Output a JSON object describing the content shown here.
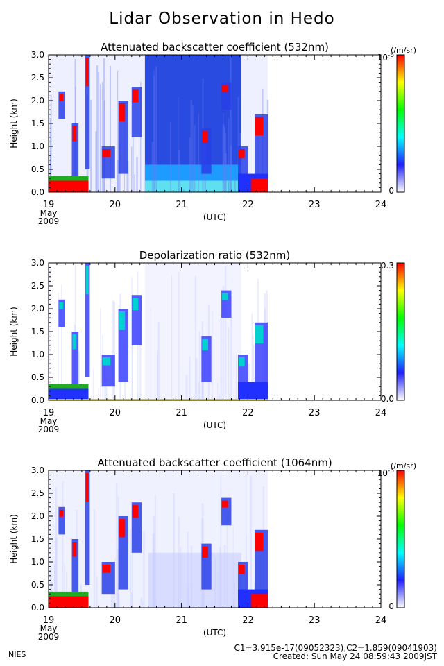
{
  "title": "Lidar Observation in Hedo",
  "organization": "NIES",
  "calibration_line": "C1=3.915e-17(09052323),C2=1.859(09041903)",
  "created_line": "Created: Sun May 24 08:59:43 2009JST",
  "chart_data": [
    {
      "type": "heatmap",
      "title": "Attenuated backscatter coefficient (532nm)",
      "ylabel": "Height (km)",
      "xlabel": "(UTC)",
      "x_ticks": [
        "19",
        "20",
        "21",
        "22",
        "23",
        "24"
      ],
      "x_date_label": [
        "May",
        "2009"
      ],
      "xlim": [
        19,
        24
      ],
      "y_ticks": [
        "0.0",
        "0.5",
        "1.0",
        "1.5",
        "2.0",
        "2.5",
        "3.0"
      ],
      "ylim": [
        0,
        3
      ],
      "data_end_x": 22.3,
      "colorbar": {
        "min_label": "0",
        "max_label": "10",
        "unit": "(/m/sr)",
        "exponent": "-6",
        "colors": [
          "#ffffff",
          "#2020ff",
          "#00ffff",
          "#00ff00",
          "#ffff00",
          "#ff0000"
        ]
      }
    },
    {
      "type": "heatmap",
      "title": "Depolarization ratio (532nm)",
      "ylabel": "Height (km)",
      "xlabel": "(UTC)",
      "x_ticks": [
        "19",
        "20",
        "21",
        "22",
        "23",
        "24"
      ],
      "x_date_label": [
        "May",
        "2009"
      ],
      "xlim": [
        19,
        24
      ],
      "y_ticks": [
        "0.0",
        "0.5",
        "1.0",
        "1.5",
        "2.0",
        "2.5",
        "3.0"
      ],
      "ylim": [
        0,
        3
      ],
      "data_end_x": 22.3,
      "colorbar": {
        "min_label": "0.0",
        "max_label": "0.3",
        "unit": "",
        "exponent": "",
        "colors": [
          "#ffffff",
          "#2020ff",
          "#00ffff",
          "#00ff00",
          "#ffff00",
          "#ff0000"
        ]
      }
    },
    {
      "type": "heatmap",
      "title": "Attenuated backscatter coefficient (1064nm)",
      "ylabel": "Height (km)",
      "xlabel": "(UTC)",
      "x_ticks": [
        "19",
        "20",
        "21",
        "22",
        "23",
        "24"
      ],
      "x_date_label": [
        "May",
        "2009"
      ],
      "xlim": [
        19,
        24
      ],
      "y_ticks": [
        "0.0",
        "0.5",
        "1.0",
        "1.5",
        "2.0",
        "2.5",
        "3.0"
      ],
      "ylim": [
        0,
        3
      ],
      "data_end_x": 22.3,
      "colorbar": {
        "min_label": "0",
        "max_label": "10",
        "unit": "(/m/sr)",
        "exponent": "-6",
        "colors": [
          "#ffffff",
          "#2020ff",
          "#00ffff",
          "#00ff00",
          "#ffff00",
          "#ff0000"
        ]
      }
    }
  ]
}
